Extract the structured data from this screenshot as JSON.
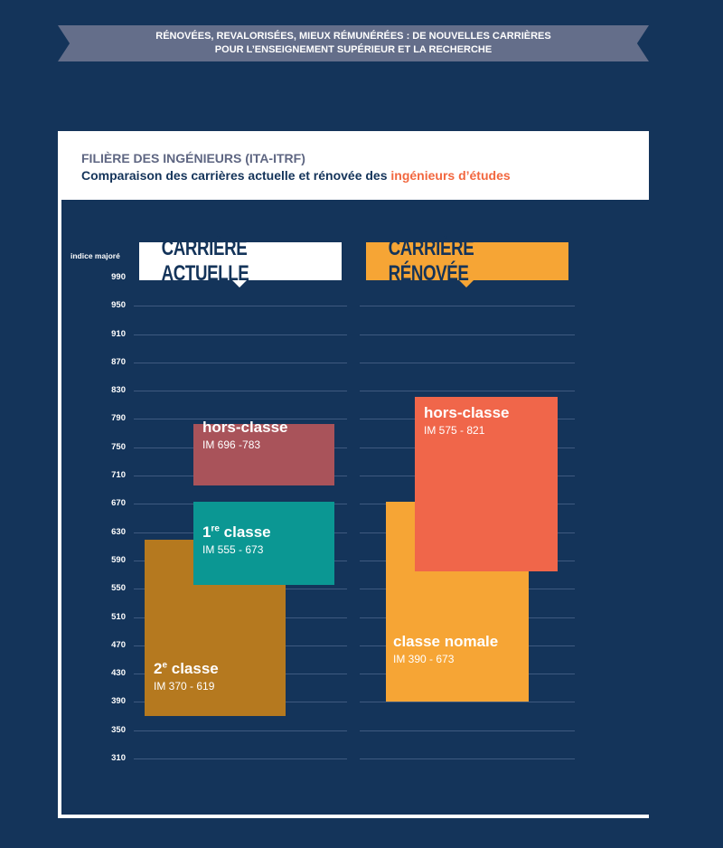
{
  "banner": {
    "line1": "RÉNOVÉES, REVALORISÉES, MIEUX RÉMUNÉRÉES : DE NOUVELLES CARRIÈRES",
    "line2": "POUR L’ENSEIGNEMENT SUPÉRIEUR ET LA RECHERCHE"
  },
  "header": {
    "kicker": "FILIÈRE DES INGÉNIEURS (ITA-ITRF)",
    "title_prefix": "Comparaison des carrières actuelle et rénovée des ",
    "title_highlight": "ingénieurs d’études"
  },
  "colors": {
    "background": "#14345a",
    "accent_orange": "#f2673f",
    "actuelle_header_bg": "#ffffff",
    "renovee_header_bg": "#f6a535",
    "grid": "#3f5a80"
  },
  "chart_data": {
    "type": "bar",
    "ylabel": "indice majoré",
    "yticks": [
      990,
      950,
      910,
      870,
      830,
      790,
      750,
      710,
      670,
      630,
      590,
      550,
      510,
      470,
      430,
      390,
      350,
      310
    ],
    "ylim": [
      310,
      990
    ],
    "grid": true,
    "groups": [
      {
        "name": "CARRIÈRE ACTUELLE",
        "bars": [
          {
            "label": "2",
            "label_sup": "e",
            "label_rest": " classe",
            "range_text": "IM 370 - 619",
            "min": 370,
            "max": 619,
            "color": "#b5791f"
          },
          {
            "label": "1",
            "label_sup": "re",
            "label_rest": " classe",
            "range_text": "IM 555 - 673",
            "min": 555,
            "max": 673,
            "color": "#0b9793"
          },
          {
            "label": "hors-classe",
            "label_sup": "",
            "label_rest": "",
            "range_text": "IM 696 -783",
            "min": 696,
            "max": 783,
            "color": "#a9535a"
          }
        ]
      },
      {
        "name": "CARRIÈRE RÉNOVÉE",
        "bars": [
          {
            "label": "classe nomale",
            "label_sup": "",
            "label_rest": "",
            "range_text": "IM 390 - 673",
            "min": 390,
            "max": 673,
            "color": "#f6a535"
          },
          {
            "label": "hors-classe",
            "label_sup": "",
            "label_rest": "",
            "range_text": "IM 575 - 821",
            "min": 575,
            "max": 821,
            "color": "#f0664a"
          }
        ]
      }
    ]
  }
}
